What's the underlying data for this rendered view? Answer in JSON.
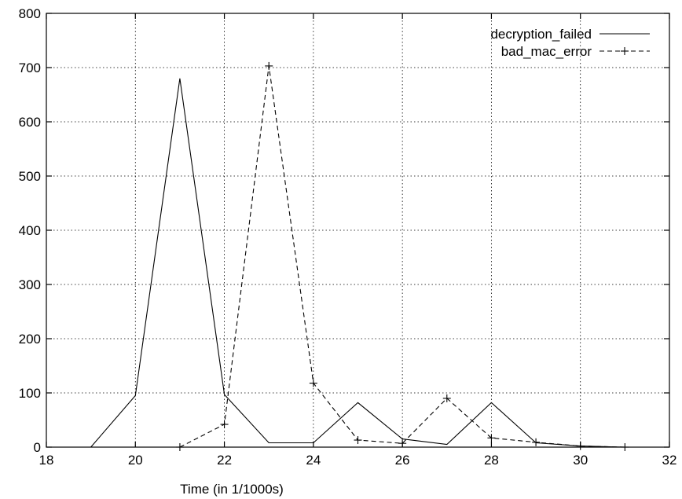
{
  "chart_data": {
    "type": "line",
    "title": "",
    "xlabel": "Time (in 1/1000s)",
    "ylabel": "",
    "xlim": [
      18,
      32
    ],
    "ylim": [
      0,
      800
    ],
    "xticks": [
      18,
      20,
      22,
      24,
      26,
      28,
      30,
      32
    ],
    "yticks": [
      0,
      100,
      200,
      300,
      400,
      500,
      600,
      700,
      800
    ],
    "grid": true,
    "legend_position": "top-right",
    "series": [
      {
        "name": "decryption_failed",
        "style": "solid",
        "marker": "none",
        "color": "#000000",
        "x": [
          19,
          20,
          21,
          22,
          23,
          24,
          25,
          26,
          27,
          28,
          29,
          30,
          31,
          32
        ],
        "y": [
          0,
          95,
          680,
          97,
          8,
          8,
          82,
          15,
          5,
          82,
          8,
          2,
          0,
          0
        ]
      },
      {
        "name": "bad_mac_error",
        "style": "dashed",
        "marker": "plus",
        "color": "#000000",
        "x": [
          21,
          22,
          23,
          24,
          25,
          26,
          27,
          28,
          29,
          30,
          31
        ],
        "y": [
          0,
          42,
          703,
          118,
          13,
          7,
          90,
          17,
          9,
          2,
          0
        ]
      }
    ]
  }
}
